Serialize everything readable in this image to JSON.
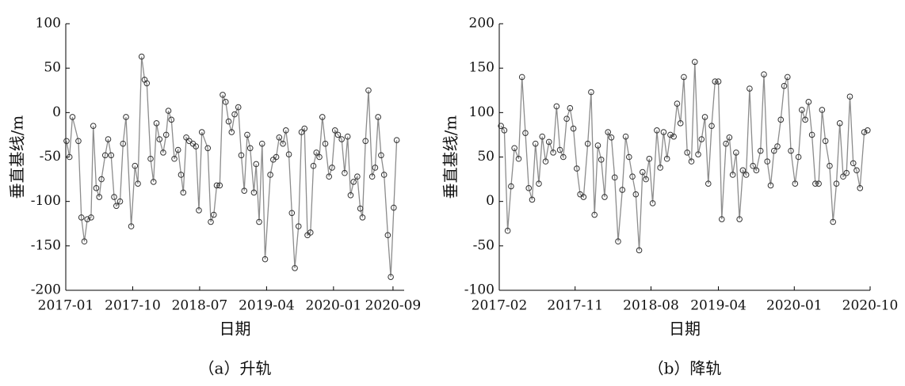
{
  "chart_data": [
    {
      "type": "line",
      "ylabel": "垂直基线/m",
      "xlabel": "日期",
      "caption": "（a）升轨",
      "color": "#8c8c8c",
      "marker_color": "#333333",
      "xlim": [
        0,
        45.5
      ],
      "xticks": [
        {
          "value": 0,
          "label": "2017-01"
        },
        {
          "value": 9,
          "label": "2017-10"
        },
        {
          "value": 18,
          "label": "2018-07"
        },
        {
          "value": 27,
          "label": "2019-04"
        },
        {
          "value": 36,
          "label": "2020-01"
        },
        {
          "value": 44,
          "label": "2020-09"
        }
      ],
      "ylim": [
        -200,
        100
      ],
      "yticks": [
        -200,
        -150,
        -100,
        -50,
        0,
        50,
        100
      ],
      "x": [
        0.1,
        0.5,
        0.9,
        1.7,
        2.1,
        2.5,
        2.9,
        3.4,
        3.7,
        4.1,
        4.5,
        4.8,
        5.3,
        5.7,
        6.1,
        6.5,
        6.8,
        7.3,
        7.7,
        8.1,
        8.8,
        9.3,
        9.7,
        10.2,
        10.6,
        10.9,
        11.4,
        11.8,
        12.2,
        12.6,
        13.1,
        13.5,
        13.8,
        14.2,
        14.6,
        15.1,
        15.5,
        15.8,
        16.2,
        16.6,
        17.1,
        17.5,
        17.9,
        18.3,
        19.1,
        19.5,
        19.9,
        20.3,
        20.7,
        21.1,
        21.5,
        21.9,
        22.3,
        22.7,
        23.2,
        23.6,
        24.0,
        24.4,
        24.8,
        25.3,
        25.6,
        26.0,
        26.4,
        26.8,
        27.5,
        27.9,
        28.3,
        28.7,
        29.2,
        29.6,
        30.0,
        30.4,
        30.8,
        31.3,
        31.7,
        32.1,
        32.5,
        32.9,
        33.3,
        33.7,
        34.1,
        34.5,
        34.9,
        35.4,
        35.8,
        36.2,
        36.6,
        37.1,
        37.5,
        37.9,
        38.3,
        38.7,
        39.2,
        39.6,
        39.9,
        40.3,
        40.7,
        41.2,
        41.6,
        42.0,
        42.4,
        42.8,
        43.3,
        43.7,
        44.1,
        44.5
      ],
      "values": [
        -32,
        -50,
        -5,
        -32,
        -118,
        -145,
        -120,
        -118,
        -15,
        -85,
        -95,
        -75,
        -48,
        -30,
        -48,
        -95,
        -105,
        -100,
        -35,
        -5,
        -128,
        -60,
        -80,
        63,
        37,
        33,
        -52,
        -78,
        -12,
        -30,
        -45,
        -25,
        2,
        -8,
        -52,
        -42,
        -70,
        -90,
        -28,
        -32,
        -35,
        -38,
        -110,
        -22,
        -40,
        -123,
        -115,
        -82,
        -82,
        20,
        12,
        -10,
        -22,
        -2,
        6,
        -48,
        -88,
        -25,
        -40,
        -90,
        -58,
        -123,
        -35,
        -165,
        -70,
        -53,
        -50,
        -28,
        -35,
        -20,
        -47,
        -113,
        -175,
        -128,
        -22,
        -18,
        -138,
        -135,
        -60,
        -45,
        -50,
        -5,
        -35,
        -72,
        -62,
        -20,
        -25,
        -30,
        -68,
        -27,
        -93,
        -78,
        -72,
        -108,
        -118,
        -32,
        25,
        -72,
        -62,
        -5,
        -48,
        -70,
        -138,
        -185,
        -107,
        -31
      ]
    },
    {
      "type": "line",
      "ylabel": "垂直基线/m",
      "xlabel": "日期",
      "caption": "（b）降轨",
      "color": "#8c8c8c",
      "marker_color": "#333333",
      "xlim": [
        0,
        44
      ],
      "xticks": [
        {
          "value": 0,
          "label": "2017-02"
        },
        {
          "value": 9,
          "label": "2017-11"
        },
        {
          "value": 18,
          "label": "2018-08"
        },
        {
          "value": 26,
          "label": "2019-04"
        },
        {
          "value": 35,
          "label": "2020-01"
        },
        {
          "value": 44,
          "label": "2020-10"
        }
      ],
      "ylim": [
        -100,
        200
      ],
      "yticks": [
        -100,
        -50,
        0,
        50,
        100,
        150,
        200
      ],
      "x": [
        0.2,
        0.6,
        1.0,
        1.4,
        1.8,
        2.3,
        2.7,
        3.1,
        3.5,
        3.9,
        4.3,
        4.7,
        5.1,
        5.5,
        5.9,
        6.4,
        6.8,
        7.2,
        7.6,
        8.0,
        8.4,
        8.8,
        9.2,
        9.6,
        10.0,
        10.5,
        10.9,
        11.3,
        11.7,
        12.1,
        12.5,
        12.9,
        13.3,
        13.7,
        14.1,
        14.6,
        15.0,
        15.4,
        15.8,
        16.2,
        16.6,
        17.0,
        17.4,
        17.8,
        18.2,
        18.7,
        19.1,
        19.5,
        19.9,
        20.3,
        20.7,
        21.1,
        21.5,
        21.9,
        22.3,
        22.8,
        23.2,
        23.6,
        24.0,
        24.4,
        24.8,
        25.2,
        25.6,
        26.0,
        26.4,
        26.9,
        27.3,
        27.7,
        28.1,
        28.5,
        28.9,
        29.3,
        29.7,
        30.1,
        30.5,
        31.0,
        31.4,
        31.8,
        32.2,
        32.6,
        33.0,
        33.4,
        33.8,
        34.2,
        34.6,
        35.1,
        35.5,
        35.9,
        36.3,
        36.7,
        37.1,
        37.5,
        37.9,
        38.3,
        38.7,
        39.2,
        39.6,
        40.0,
        40.4,
        40.8,
        41.2,
        41.6,
        42.0,
        42.4,
        42.8,
        43.3,
        43.7
      ],
      "values": [
        85,
        80,
        -33,
        17,
        60,
        48,
        140,
        77,
        15,
        2,
        65,
        20,
        73,
        45,
        67,
        55,
        107,
        58,
        50,
        93,
        105,
        82,
        37,
        8,
        5,
        65,
        123,
        -15,
        63,
        47,
        5,
        78,
        72,
        27,
        -45,
        13,
        73,
        50,
        28,
        8,
        -55,
        33,
        25,
        48,
        -2,
        80,
        38,
        78,
        48,
        75,
        73,
        110,
        88,
        140,
        55,
        45,
        157,
        53,
        70,
        95,
        20,
        85,
        135,
        135,
        -20,
        65,
        72,
        30,
        55,
        -20,
        35,
        30,
        127,
        40,
        35,
        57,
        143,
        45,
        18,
        57,
        62,
        92,
        130,
        140,
        57,
        20,
        50,
        103,
        92,
        112,
        75,
        20,
        20,
        103,
        68,
        40,
        -23,
        20,
        88,
        28,
        32,
        118,
        43,
        35,
        15,
        78,
        80
      ]
    }
  ]
}
